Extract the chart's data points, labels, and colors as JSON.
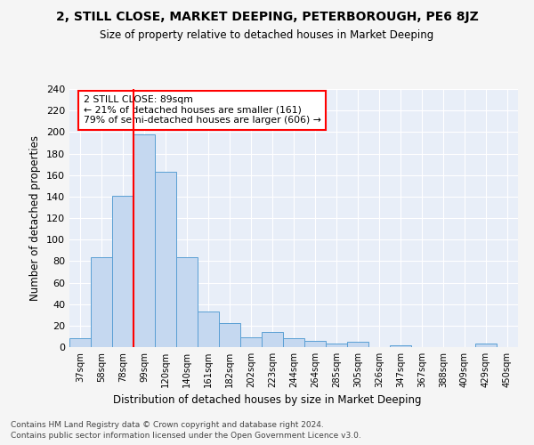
{
  "title": "2, STILL CLOSE, MARKET DEEPING, PETERBOROUGH, PE6 8JZ",
  "subtitle": "Size of property relative to detached houses in Market Deeping",
  "xlabel": "Distribution of detached houses by size in Market Deeping",
  "ylabel": "Number of detached properties",
  "bar_color": "#c5d8f0",
  "bar_edge_color": "#5a9fd4",
  "background_color": "#e8eef8",
  "grid_color": "#ffffff",
  "fig_background": "#f5f5f5",
  "categories": [
    "37sqm",
    "58sqm",
    "78sqm",
    "99sqm",
    "120sqm",
    "140sqm",
    "161sqm",
    "182sqm",
    "202sqm",
    "223sqm",
    "244sqm",
    "264sqm",
    "285sqm",
    "305sqm",
    "326sqm",
    "347sqm",
    "367sqm",
    "388sqm",
    "409sqm",
    "429sqm",
    "450sqm"
  ],
  "values": [
    8,
    84,
    141,
    198,
    163,
    84,
    33,
    22,
    9,
    14,
    8,
    6,
    3,
    5,
    0,
    2,
    0,
    0,
    0,
    3,
    0
  ],
  "ylim": [
    0,
    240
  ],
  "yticks": [
    0,
    20,
    40,
    60,
    80,
    100,
    120,
    140,
    160,
    180,
    200,
    220,
    240
  ],
  "red_line_x": 2.5,
  "annotation_text": "2 STILL CLOSE: 89sqm\n← 21% of detached houses are smaller (161)\n79% of semi-detached houses are larger (606) →",
  "footnote1": "Contains HM Land Registry data © Crown copyright and database right 2024.",
  "footnote2": "Contains public sector information licensed under the Open Government Licence v3.0."
}
